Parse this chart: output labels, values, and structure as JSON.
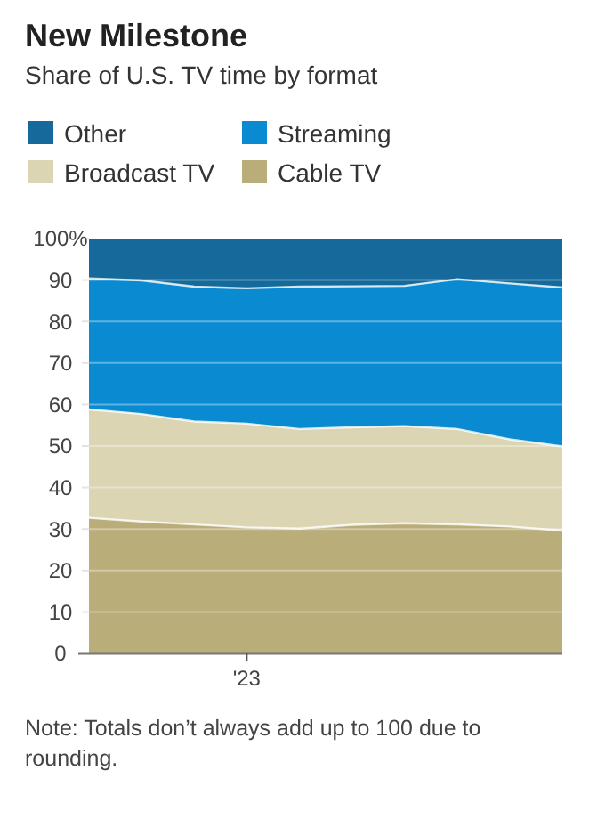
{
  "chart_data": {
    "type": "area",
    "stacked": true,
    "title": "New Milestone",
    "subtitle": "Share of U.S. TV time by format",
    "categories": [
      null,
      null,
      null,
      "'23",
      null,
      null,
      null,
      null,
      null,
      null
    ],
    "series": [
      {
        "name": "Cable TV",
        "color": "#b9ad79",
        "values": [
          32.7,
          31.8,
          31.1,
          30.4,
          30.1,
          31.0,
          31.4,
          31.1,
          30.6,
          29.6
        ]
      },
      {
        "name": "Broadcast TV",
        "color": "#dbd5b3",
        "values": [
          26.1,
          25.9,
          24.8,
          25.0,
          24.0,
          23.5,
          23.4,
          23.0,
          21.0,
          20.3
        ]
      },
      {
        "name": "Streaming",
        "color": "#0a8ad0",
        "values": [
          31.6,
          32.2,
          32.5,
          32.6,
          34.3,
          34.0,
          33.8,
          36.1,
          37.6,
          38.3
        ]
      },
      {
        "name": "Other",
        "color": "#156a9b",
        "values": [
          9.6,
          10.1,
          11.6,
          12.0,
          11.6,
          11.5,
          11.4,
          9.8,
          10.8,
          11.8
        ]
      }
    ],
    "ylim": [
      0,
      100
    ],
    "yticks": [
      0,
      10,
      20,
      30,
      40,
      50,
      60,
      70,
      80,
      90,
      {
        "value": 100,
        "label": "100%"
      }
    ],
    "grid": "y",
    "legend": "top",
    "annotations": [
      "Note: Totals don’t always add up to 100 due to rounding."
    ]
  }
}
